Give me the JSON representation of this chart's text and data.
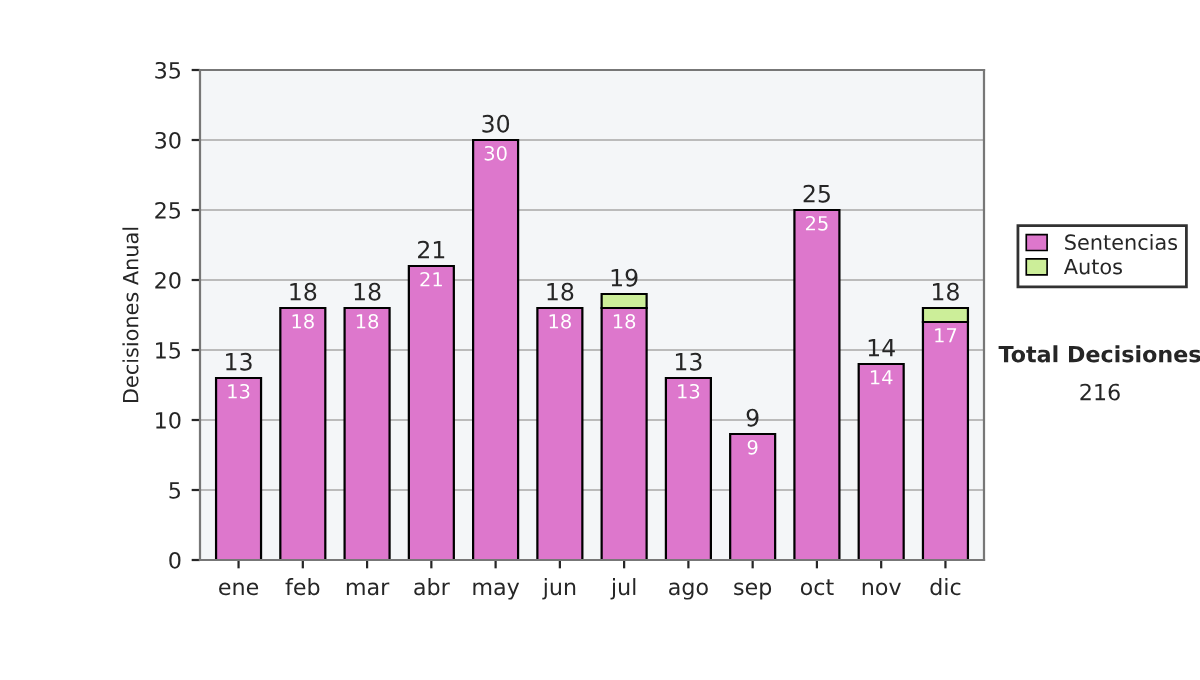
{
  "chart_data": {
    "type": "bar",
    "stacked": true,
    "ylabel": "Decisiones Anual",
    "categories": [
      "ene",
      "feb",
      "mar",
      "abr",
      "may",
      "jun",
      "jul",
      "ago",
      "sep",
      "oct",
      "nov",
      "dic"
    ],
    "series": [
      {
        "name": "Sentencias",
        "color": "#dd77cc",
        "values": [
          13,
          18,
          18,
          21,
          30,
          18,
          18,
          13,
          9,
          25,
          14,
          17
        ],
        "value_labels": [
          "13",
          "18",
          "18",
          "21",
          "30",
          "18",
          "18",
          "13",
          "9",
          "25",
          "14",
          "17"
        ]
      },
      {
        "name": "Autos",
        "color": "#ccee99",
        "values": [
          null,
          null,
          null,
          null,
          null,
          null,
          1,
          null,
          null,
          null,
          null,
          1
        ]
      }
    ],
    "totals": [
      "13",
      "18",
      "18",
      "21",
      "30",
      "18",
      "19",
      "13",
      "9",
      "25",
      "14",
      "18"
    ],
    "ylim": [
      0,
      35
    ],
    "yticks": [
      0,
      5,
      10,
      15,
      20,
      25,
      30,
      35
    ],
    "grid": "y",
    "legend": "right",
    "annotations": [
      "Total Decisiones",
      "216"
    ]
  }
}
